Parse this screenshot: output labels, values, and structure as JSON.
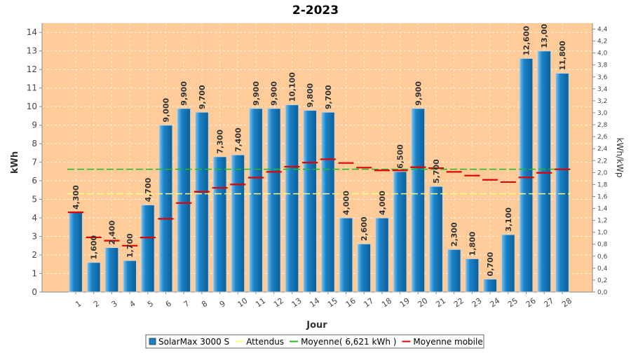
{
  "chart_data": {
    "type": "bar",
    "title": "2-2023",
    "xlabel": "Jour",
    "ylabel": "kWh",
    "y2label": "kWh/kWp",
    "ylim": [
      0,
      14.5
    ],
    "y2lim": [
      0,
      4.5
    ],
    "yticks": [
      "0",
      "1",
      "2",
      "3",
      "4",
      "5",
      "6",
      "7",
      "8",
      "9",
      "10",
      "11",
      "12",
      "13",
      "14"
    ],
    "y2ticks": [
      "0,0",
      "0,2",
      "0,4",
      "0,6",
      "0,8",
      "1,0",
      "1,2",
      "1,4",
      "1,6",
      "1,8",
      "2,0",
      "2,2",
      "2,4",
      "2,6",
      "2,8",
      "3,0",
      "3,2",
      "3,4",
      "3,6",
      "3,8",
      "4,0",
      "4,2",
      "4,4"
    ],
    "grid": true,
    "legend_position": "bottom",
    "categories": [
      "1",
      "2",
      "3",
      "4",
      "5",
      "6",
      "7",
      "8",
      "9",
      "10",
      "11",
      "12",
      "13",
      "14",
      "15",
      "16",
      "17",
      "18",
      "19",
      "20",
      "21",
      "22",
      "23",
      "24",
      "25",
      "26",
      "27",
      "28"
    ],
    "series": [
      {
        "name": "SolarMax 3000 S",
        "kind": "bar",
        "color": "#1a82c8",
        "values": [
          4.3,
          1.6,
          2.4,
          1.7,
          4.7,
          9.0,
          9.9,
          9.7,
          7.3,
          7.4,
          9.9,
          9.9,
          10.1,
          9.8,
          9.7,
          4.0,
          2.6,
          4.0,
          6.5,
          9.9,
          5.7,
          2.3,
          1.8,
          0.7,
          3.1,
          12.6,
          13.0,
          11.8
        ],
        "labels": [
          "4,300",
          "1,600",
          "2,400",
          "1,700",
          "4,700",
          "9,000",
          "9,900",
          "9,700",
          "7,300",
          "7,400",
          "9,900",
          "9,900",
          "10,100",
          "9,800",
          "9,700",
          "4,000",
          "2,600",
          "4,000",
          "6,500",
          "9,900",
          "5,700",
          "2,300",
          "1,800",
          "0,700",
          "3,100",
          "12,600",
          "13,00",
          "11,800"
        ]
      },
      {
        "name": "Attendus",
        "kind": "line",
        "color": "#ffff80",
        "value": 5.3
      },
      {
        "name": "Moyenne( 6,621 kWh )",
        "kind": "line",
        "color": "#22bb22",
        "value": 6.621
      },
      {
        "name": "Moyenne mobile",
        "kind": "step",
        "color": "#e00000",
        "values": [
          4.3,
          2.95,
          2.77,
          2.5,
          2.94,
          3.95,
          4.8,
          5.41,
          5.62,
          5.8,
          6.17,
          6.48,
          6.76,
          6.98,
          7.16,
          6.96,
          6.71,
          6.56,
          6.56,
          6.73,
          6.68,
          6.48,
          6.28,
          6.05,
          5.93,
          6.18,
          6.43,
          6.62
        ]
      }
    ]
  }
}
